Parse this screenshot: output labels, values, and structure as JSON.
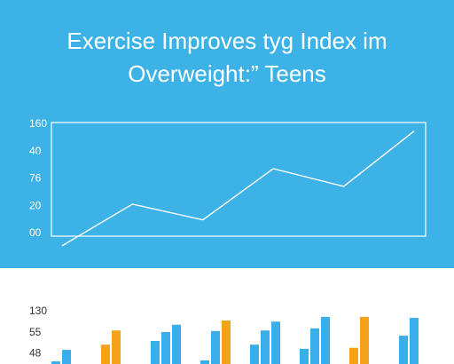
{
  "chart_data": [
    {
      "type": "line",
      "title": "Exercise Improves tyg Index im Overweight:” Teens",
      "categories": [
        null,
        null,
        null,
        null,
        null,
        null
      ],
      "values": [
        -18,
        43,
        20,
        95,
        69,
        150
      ],
      "color": "#ffffff",
      "ylim": [
        0,
        160
      ],
      "yticks": [
        160,
        {
          "value": 120,
          "label": "40"
        },
        {
          "value": 80,
          "label": "76"
        },
        {
          "value": 40,
          "label": "20"
        },
        {
          "value": 0,
          "label": "00"
        }
      ]
    },
    {
      "type": "bar",
      "categories": [
        null,
        null,
        null,
        null,
        null,
        null,
        null,
        null
      ],
      "series": [
        {
          "values": [
            35,
            67,
            74,
            37,
            67,
            59,
            61,
            84
          ],
          "colors": [
            "#3aaee8",
            "#f5a21b",
            "#3aaee8",
            "#3aaee8",
            "#3aaee8",
            "#3aaee8",
            "#f5a21b",
            "#3aaee8"
          ]
        },
        {
          "values": [
            57,
            94,
            91,
            93,
            94,
            98,
            120,
            118
          ],
          "colors": [
            "#3aaee8",
            "#f5a21b",
            "#3aaee8",
            "#3aaee8",
            "#3aaee8",
            "#3aaee8",
            "#f5a21b",
            "#3aaee8"
          ]
        },
        {
          "values": [
            null,
            null,
            105,
            113,
            111,
            120,
            null,
            null
          ],
          "colors": [
            null,
            null,
            "#3aaee8",
            "#f5a21b",
            "#3aaee8",
            "#3aaee8",
            null,
            null
          ]
        }
      ],
      "ylim": [
        30,
        130
      ],
      "yticks": [
        130,
        {
          "value": 90,
          "label": "55"
        },
        {
          "value": 50,
          "label": "48"
        }
      ]
    }
  ]
}
